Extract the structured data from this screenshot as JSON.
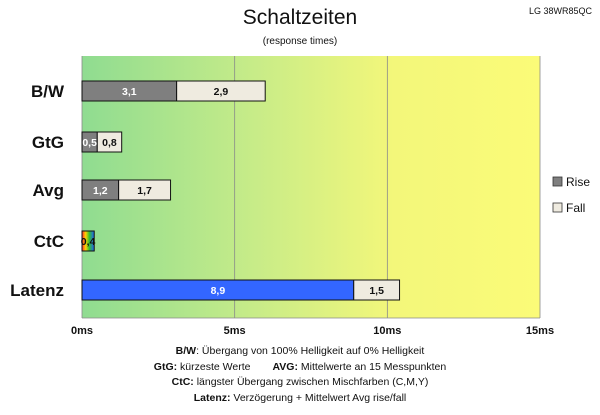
{
  "header": {
    "title": "Schaltzeiten",
    "subtitle": "(response times)",
    "model": "LG 38WR85QC"
  },
  "chart_data": {
    "type": "bar",
    "orientation": "horizontal",
    "stacked": true,
    "title": "Schaltzeiten",
    "subtitle": "(response times)",
    "categories": [
      "B/W",
      "GtG",
      "Avg",
      "CtC",
      "Latenz"
    ],
    "series": [
      {
        "name": "Rise",
        "values": [
          3.1,
          0.5,
          1.2,
          0.4,
          8.9
        ],
        "color": "#7f7f7f",
        "labels": [
          "3,1",
          "0,5",
          "1,2",
          "0,4",
          "8,9"
        ]
      },
      {
        "name": "Fall",
        "values": [
          2.9,
          0.8,
          1.7,
          0.0,
          1.5
        ],
        "color": "#efebe0",
        "labels": [
          "2,9",
          "0,8",
          "1,7",
          "",
          "1,5"
        ]
      }
    ],
    "special_colors": {
      "CtC": "rainbow",
      "Latenz": "#3366ff"
    },
    "xlim": [
      0,
      15
    ],
    "xticks": [
      "0ms",
      "5ms",
      "10ms",
      "15ms"
    ],
    "xtick_values": [
      0,
      5,
      10,
      15
    ],
    "background_gradient": [
      "#8fdc91",
      "#c8ec88",
      "#f3f77a",
      "#fbfb78"
    ],
    "legend": {
      "position": "right",
      "items": [
        "Rise",
        "Fall"
      ]
    }
  },
  "notes": {
    "line1_key": "B/W",
    "line1_text": ":  Übergang von 100% Helligkeit auf 0% Helligkeit",
    "line2_key": "GtG:",
    "line2_text": " kürzeste  Werte",
    "line2b_key": "AVG:",
    "line2b_text": " Mittelwerte  an 15 Messpunkten",
    "line3_key": "CtC:",
    "line3_text": " längster Übergang  zwischen Mischfarben  (C,M,Y)",
    "line4_key": "Latenz:",
    "line4_text": " Verzögerung  + Mittelwert Avg rise/fall"
  }
}
